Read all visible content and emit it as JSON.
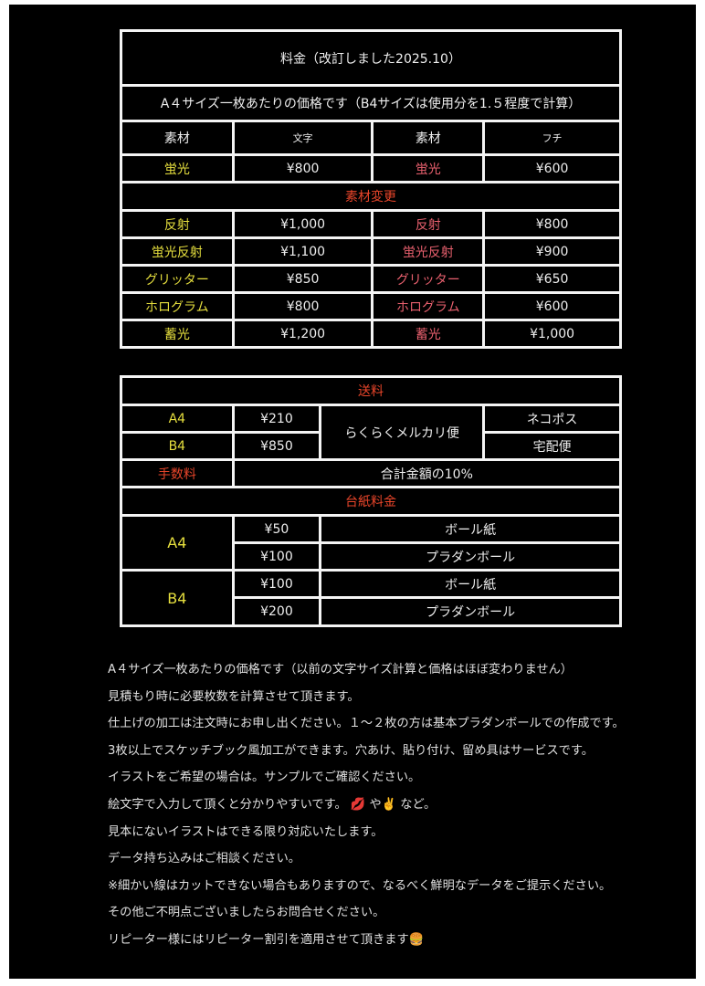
{
  "pricing": {
    "title": "料金（改訂しました2025.10）",
    "subtitle": "A４サイズ一枚あたりの価格です（B4サイズは使用分を1.５程度で計算）",
    "headers": [
      "素材",
      "文字",
      "素材",
      "フチ"
    ],
    "base_row": {
      "moji_material": "蛍光",
      "moji_price": "¥800",
      "fuchi_material": "蛍光",
      "fuchi_price": "¥600"
    },
    "change_heading": "素材変更",
    "rows": [
      {
        "moji_material": "反射",
        "moji_price": "¥1,000",
        "fuchi_material": "反射",
        "fuchi_price": "¥800"
      },
      {
        "moji_material": "蛍光反射",
        "moji_price": "¥1,100",
        "fuchi_material": "蛍光反射",
        "fuchi_price": "¥900"
      },
      {
        "moji_material": "グリッター",
        "moji_price": "¥850",
        "fuchi_material": "グリッター",
        "fuchi_price": "¥650"
      },
      {
        "moji_material": "ホログラム",
        "moji_price": "¥800",
        "fuchi_material": "ホログラム",
        "fuchi_price": "¥600"
      },
      {
        "moji_material": "蓄光",
        "moji_price": "¥1,200",
        "fuchi_material": "蓄光",
        "fuchi_price": "¥1,000"
      }
    ]
  },
  "shipping": {
    "heading": "送料",
    "a4_label": "A4",
    "a4_price": "¥210",
    "b4_label": "B4",
    "b4_price": "¥850",
    "service": "らくらくメルカリ便",
    "a4_method": "ネコポス",
    "b4_method": "宅配便",
    "fee_label": "手数料",
    "fee_value": "合計金額の10%",
    "board_heading": "台紙料金",
    "board": {
      "a4_label": "A4",
      "a4": [
        {
          "price": "¥50",
          "type": "ボール紙"
        },
        {
          "price": "¥100",
          "type": "プラダンボール"
        }
      ],
      "b4_label": "B4",
      "b4": [
        {
          "price": "¥100",
          "type": "ボール紙"
        },
        {
          "price": "¥200",
          "type": "プラダンボール"
        }
      ]
    }
  },
  "notes": [
    "A４サイズ一枚あたりの価格です（以前の文字サイズ計算と価格はほぼ変わりません）",
    "見積もり時に必要枚数を計算させて頂きます。",
    "仕上げの加工は注文時にお申し出ください。１～２枚の方は基本プラダンボールでの作成です。",
    "3枚以上でスケッチブック風加工ができます。穴あけ、貼り付け、留め具はサービスです。",
    "イラストをご希望の場合は。サンプルでご確認ください。",
    {
      "before": "絵文字で入力して頂くと分かりやすいです。",
      "emoji1": "💋",
      "mid": " や",
      "emoji2": "✌️",
      "after": " など。"
    },
    "見本にないイラストはできる限り対応いたします。",
    "データ持ち込みはご相談ください。",
    "※細かい線はカットできない場合もありますので、なるべく鮮明なデータをご提示ください。",
    "その他ご不明点ございましたらお問合せください。",
    {
      "text": "リピーター様にはリピーター割引を適用させて頂きます",
      "emoji": "🍔"
    }
  ],
  "colors": {
    "yellow": "#e6df3e",
    "pink": "#e8606e",
    "red": "#e8452a",
    "background": "#000000",
    "border": "#f4f4f4"
  }
}
